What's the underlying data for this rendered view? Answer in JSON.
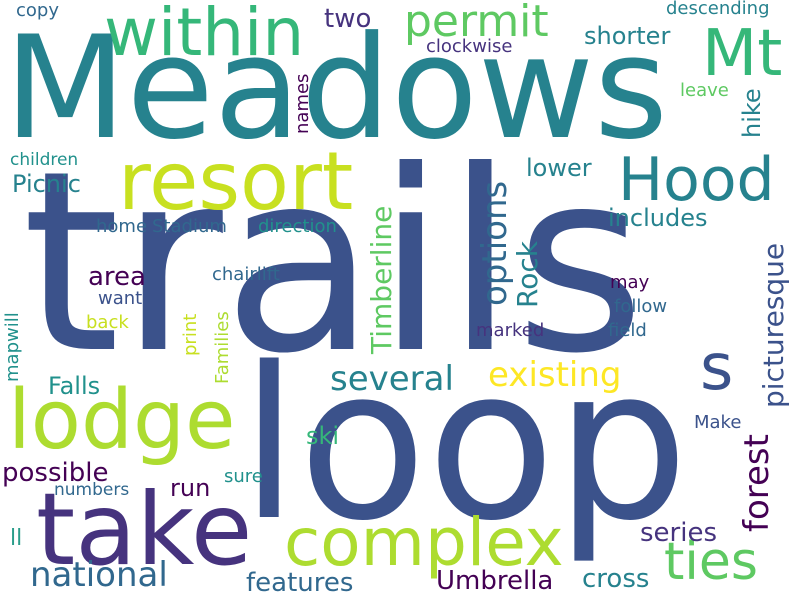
{
  "palette": {
    "dark_blue": "#3b528b",
    "indigo": "#46337e",
    "deep_purple": "#440154",
    "teal": "#26828e",
    "teal_light": "#21918c",
    "sea_green": "#2a9d8a",
    "green": "#35b779",
    "light_green": "#5ec962",
    "lime": "#addc30",
    "yellow_green": "#c8e020",
    "yellow": "#fde725",
    "slate": "#31688e"
  },
  "words": [
    {
      "id": "meadows",
      "text": "Meadows",
      "color": "#26828e"
    },
    {
      "id": "trails",
      "text": "trails",
      "color": "#3b528b"
    },
    {
      "id": "loop",
      "text": "loop",
      "color": "#3b528b"
    },
    {
      "id": "resort",
      "text": "resort",
      "color": "#c8e020"
    },
    {
      "id": "lodge",
      "text": "lodge",
      "color": "#addc30"
    },
    {
      "id": "take",
      "text": "take",
      "color": "#46337e"
    },
    {
      "id": "complex",
      "text": "complex",
      "color": "#addc30"
    },
    {
      "id": "within",
      "text": "within",
      "color": "#35b779"
    },
    {
      "id": "mt",
      "text": "Mt",
      "color": "#35b779"
    },
    {
      "id": "hood",
      "text": "Hood",
      "color": "#26828e"
    },
    {
      "id": "permit",
      "text": "permit",
      "color": "#5ec962"
    },
    {
      "id": "s",
      "text": "s",
      "color": "#3b528b"
    },
    {
      "id": "ties",
      "text": "ties",
      "color": "#5ec962"
    },
    {
      "id": "national",
      "text": "national",
      "color": "#31688e"
    },
    {
      "id": "existing",
      "text": "existing",
      "color": "#fde725"
    },
    {
      "id": "several",
      "text": "several",
      "color": "#26828e"
    },
    {
      "id": "options",
      "text": "options",
      "color": "#31688e"
    },
    {
      "id": "forest",
      "text": "forest",
      "color": "#440154"
    },
    {
      "id": "picturesque",
      "text": "picturesque",
      "color": "#3b528b"
    },
    {
      "id": "timberline",
      "text": "Timberline",
      "color": "#5ec962"
    },
    {
      "id": "rock",
      "text": "Rock",
      "color": "#26828e"
    },
    {
      "id": "umbrella",
      "text": "Umbrella",
      "color": "#440154"
    },
    {
      "id": "features",
      "text": "features",
      "color": "#31688e"
    },
    {
      "id": "cross",
      "text": "cross",
      "color": "#26828e"
    },
    {
      "id": "series",
      "text": "series",
      "color": "#46337e"
    },
    {
      "id": "possible",
      "text": "possible",
      "color": "#440154"
    },
    {
      "id": "area",
      "text": "area",
      "color": "#440154"
    },
    {
      "id": "falls",
      "text": "Falls",
      "color": "#21918c"
    },
    {
      "id": "picnic",
      "text": "Picnic",
      "color": "#26828e"
    },
    {
      "id": "includes",
      "text": "includes",
      "color": "#26828e"
    },
    {
      "id": "lower",
      "text": "lower",
      "color": "#26828e"
    },
    {
      "id": "shorter",
      "text": "shorter",
      "color": "#26828e"
    },
    {
      "id": "two",
      "text": "two",
      "color": "#46337e"
    },
    {
      "id": "hike",
      "text": "hike",
      "color": "#26828e"
    },
    {
      "id": "run",
      "text": "run",
      "color": "#440154"
    },
    {
      "id": "ski",
      "text": "ski",
      "color": "#35b779"
    },
    {
      "id": "ll",
      "text": "ll",
      "color": "#2a9d8a"
    },
    {
      "id": "copy",
      "text": "copy",
      "color": "#31688e"
    },
    {
      "id": "descending",
      "text": "descending",
      "color": "#26828e"
    },
    {
      "id": "clockwise",
      "text": "clockwise",
      "color": "#46337e"
    },
    {
      "id": "leave",
      "text": "leave",
      "color": "#5ec962"
    },
    {
      "id": "names",
      "text": "names",
      "color": "#440154"
    },
    {
      "id": "children",
      "text": "children",
      "color": "#21918c"
    },
    {
      "id": "home",
      "text": "home",
      "color": "#31688e"
    },
    {
      "id": "stadium",
      "text": "Stadium",
      "color": "#31688e"
    },
    {
      "id": "direction",
      "text": "direction",
      "color": "#21918c"
    },
    {
      "id": "chairlift",
      "text": "chairlift",
      "color": "#31688e"
    },
    {
      "id": "want",
      "text": "want",
      "color": "#3b528b"
    },
    {
      "id": "back",
      "text": "back",
      "color": "#c8e020"
    },
    {
      "id": "map",
      "text": "map",
      "color": "#21918c"
    },
    {
      "id": "will",
      "text": "will",
      "color": "#21918c"
    },
    {
      "id": "print",
      "text": "print",
      "color": "#c8e020"
    },
    {
      "id": "families",
      "text": "Families",
      "color": "#addc30"
    },
    {
      "id": "marked",
      "text": "marked",
      "color": "#46337e"
    },
    {
      "id": "may",
      "text": "may",
      "color": "#440154"
    },
    {
      "id": "follow",
      "text": "follow",
      "color": "#31688e"
    },
    {
      "id": "field",
      "text": "field",
      "color": "#31688e"
    },
    {
      "id": "make",
      "text": "Make",
      "color": "#3b528b"
    },
    {
      "id": "sure",
      "text": "sure",
      "color": "#21918c"
    },
    {
      "id": "numbers",
      "text": "numbers",
      "color": "#31688e"
    }
  ]
}
